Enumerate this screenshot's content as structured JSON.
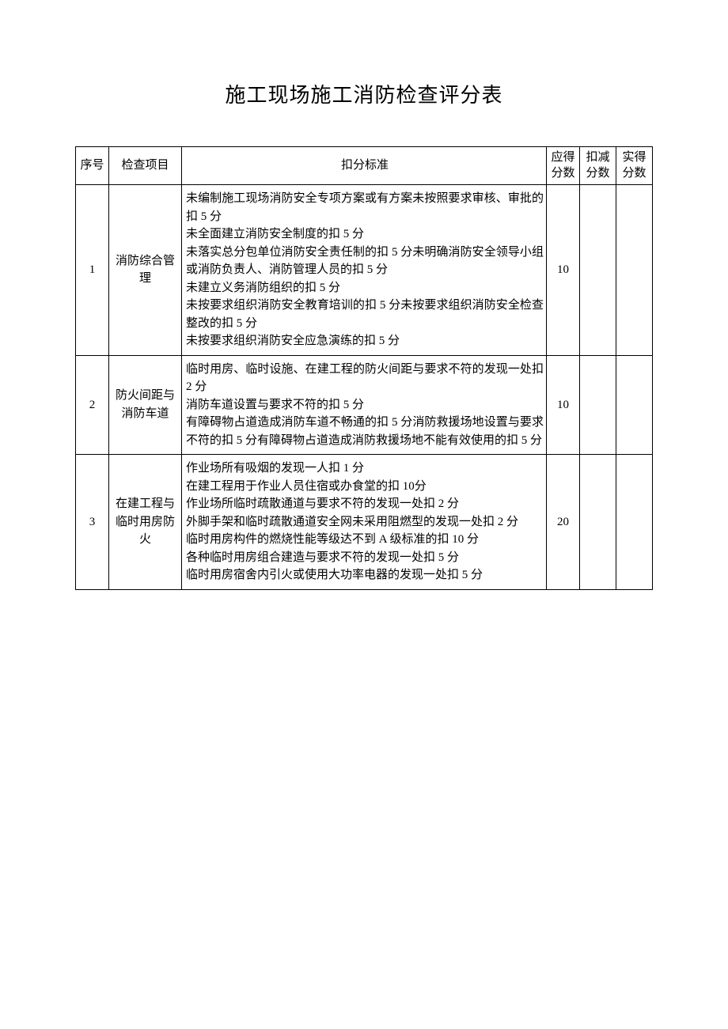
{
  "title": "施工现场施工消防检查评分表",
  "headers": {
    "seq": "序号",
    "item": "检查项目",
    "criteria": "扣分标准",
    "max_score": "应得分数",
    "deduct": "扣减分数",
    "actual": "实得分数"
  },
  "rows": [
    {
      "seq": "1",
      "item": "消防综合管理",
      "criteria": "未编制施工现场消防安全专项方案或有方案未按照要求审核、审批的扣 5 分\n未全面建立消防安全制度的扣 5 分\n未落实总分包单位消防安全责任制的扣 5 分未明确消防安全领导小组或消防负责人、消防管理人员的扣 5 分\n未建立义务消防组织的扣 5 分\n未按要求组织消防安全教育培训的扣 5 分未按要求组织消防安全检查整改的扣 5 分\n未按要求组织消防安全应急演练的扣 5 分",
      "max_score": "10",
      "deduct": "",
      "actual": ""
    },
    {
      "seq": "2",
      "item": "防火间距与消防车道",
      "criteria": "临时用房、临时设施、在建工程的防火间距与要求不符的发现一处扣 2 分\n消防车道设置与要求不符的扣 5 分\n有障碍物占道造成消防车道不畅通的扣 5 分消防救援场地设置与要求不符的扣 5 分有障碍物占道造成消防救援场地不能有效使用的扣 5 分",
      "max_score": "10",
      "deduct": "",
      "actual": ""
    },
    {
      "seq": "3",
      "item": "在建工程与临时用房防火",
      "criteria": "作业场所有吸烟的发现一人扣 1 分\n在建工程用于作业人员住宿或办食堂的扣 10分\n作业场所临时疏散通道与要求不符的发现一处扣 2 分\n外脚手架和临时疏散通道安全网未采用阻燃型的发现一处扣 2 分\n临时用房构件的燃烧性能等级达不到 A 级标准的扣 10 分\n各种临时用房组合建造与要求不符的发现一处扣 5 分\n临时用房宿舍内引火或使用大功率电器的发现一处扣 5 分",
      "max_score": "20",
      "deduct": "",
      "actual": ""
    }
  ],
  "colors": {
    "text": "#000000",
    "background": "#ffffff",
    "border": "#000000"
  }
}
